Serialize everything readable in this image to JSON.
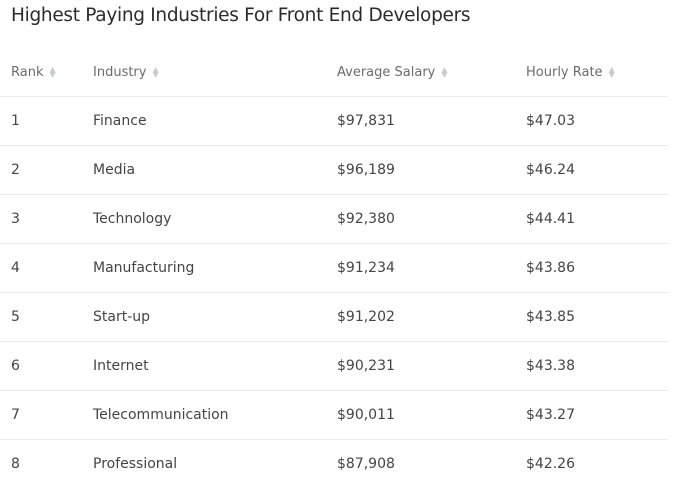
{
  "title": "Highest Paying Industries For Front End Developers",
  "table": {
    "columns": [
      {
        "label": "Rank",
        "sort_icon": "sort-icon"
      },
      {
        "label": "Industry",
        "sort_icon": "sort-icon"
      },
      {
        "label": "Average Salary",
        "sort_icon": "sort-icon"
      },
      {
        "label": "Hourly Rate",
        "sort_icon": "sort-icon"
      }
    ],
    "rows": [
      [
        "1",
        "Finance",
        "$97,831",
        "$47.03"
      ],
      [
        "2",
        "Media",
        "$96,189",
        "$46.24"
      ],
      [
        "3",
        "Technology",
        "$92,380",
        "$44.41"
      ],
      [
        "4",
        "Manufacturing",
        "$91,234",
        "$43.86"
      ],
      [
        "5",
        "Start-up",
        "$91,202",
        "$43.85"
      ],
      [
        "6",
        "Internet",
        "$90,231",
        "$43.38"
      ],
      [
        "7",
        "Telecommunication",
        "$90,011",
        "$43.27"
      ],
      [
        "8",
        "Professional",
        "$87,908",
        "$42.26"
      ]
    ]
  }
}
